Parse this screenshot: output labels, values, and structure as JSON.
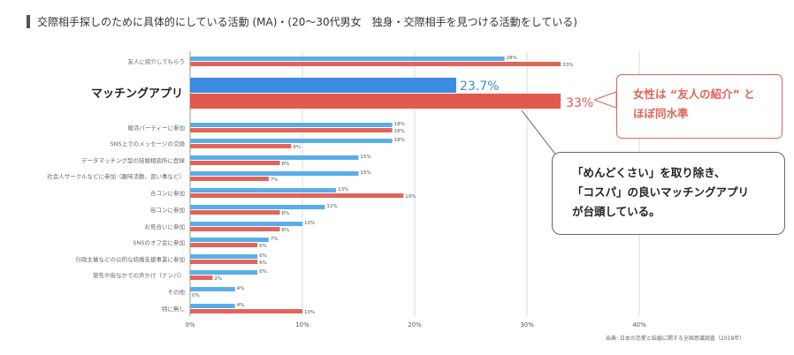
{
  "title": "交際相手探しのために具体的にしている活動 (MA)・(20〜30代男女　独身・交際相手を見つける活動をしている)",
  "callout_female": [
    "女性は “友人の紹介” と",
    "ほぼ同水準"
  ],
  "callout_main": [
    "「めんどくさい」を取り除き、",
    "「コスパ」の良いマッチングアプリ",
    "が台頭している。"
  ],
  "source": "出典: 日本の恋愛と結婚に関する全国意識調査（2018年）",
  "colors": {
    "male": "#5aaee8",
    "female": "#e0655a",
    "male_highlight": "#3a8de0",
    "female_highlight": "#e25a4f",
    "grid": "#d8d8d8"
  },
  "chart_data": {
    "type": "bar",
    "orientation": "horizontal",
    "categories": [
      "友人に紹介してもらう",
      "マッチングアプリ",
      "婚活パーティーに参加",
      "SNS上でのメッセージの交換",
      "データマッチング型の結婚相談所に登録",
      "社会人サークルなどに参加（趣味活動、習い事など）",
      "合コンに参加",
      "街コンに参加",
      "お見合いに参加",
      "SNSのオフ会に参加",
      "行政主催などの公的な結婚支援事業に参加",
      "旅先や街なかでの声かけ（ナンパ）",
      "その他",
      "特に無し"
    ],
    "series": [
      {
        "values": [
          28,
          23.7,
          18,
          18,
          15,
          15,
          13,
          12,
          10,
          7,
          6,
          6,
          4,
          4
        ]
      },
      {
        "values": [
          33,
          33,
          18,
          9,
          8,
          7,
          19,
          8,
          8,
          6,
          6,
          2,
          0,
          10
        ]
      }
    ],
    "labels": [
      [
        "28%",
        "23.7%",
        "18%",
        "18%",
        "15%",
        "15%",
        "13%",
        "12%",
        "10%",
        "7%",
        "6%",
        "6%",
        "4%",
        "4%"
      ],
      [
        "33%",
        "33%",
        "18%",
        "9%",
        "8%",
        "7%",
        "19%",
        "8%",
        "8%",
        "6%",
        "6%",
        "2%",
        "0%",
        "10%"
      ]
    ],
    "highlight_index": 1,
    "xlim": [
      0,
      40
    ],
    "xticks": [
      "0%",
      "10%",
      "20%",
      "30%",
      "40%"
    ],
    "grid": true
  }
}
